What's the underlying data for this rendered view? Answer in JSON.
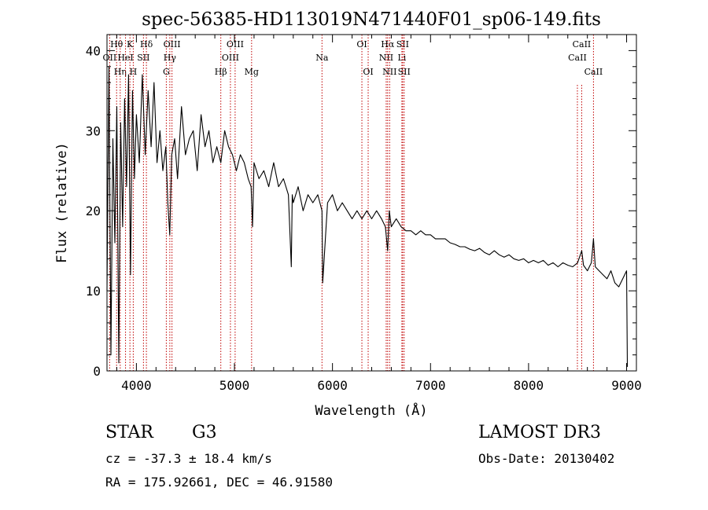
{
  "chart_data": {
    "type": "line",
    "title": "spec-56385-HD113019N471440F01_sp06-149.fits",
    "xlabel": "Wavelength (Å)",
    "ylabel": "Flux (relative)",
    "xlim": [
      3700,
      9100
    ],
    "ylim": [
      0,
      42
    ],
    "xticks": [
      4000,
      5000,
      6000,
      7000,
      8000,
      9000
    ],
    "yticks": [
      0,
      10,
      20,
      30,
      40
    ],
    "series": [
      {
        "name": "flux",
        "x": [
          3700,
          3720,
          3740,
          3760,
          3780,
          3800,
          3820,
          3840,
          3860,
          3880,
          3900,
          3920,
          3940,
          3960,
          3980,
          4000,
          4030,
          4060,
          4090,
          4120,
          4150,
          4180,
          4210,
          4240,
          4270,
          4300,
          4320,
          4340,
          4360,
          4390,
          4420,
          4460,
          4500,
          4540,
          4580,
          4620,
          4660,
          4700,
          4740,
          4780,
          4820,
          4861,
          4900,
          4940,
          4980,
          5020,
          5060,
          5100,
          5140,
          5170,
          5184,
          5200,
          5250,
          5300,
          5350,
          5400,
          5450,
          5500,
          5550,
          5580,
          5590,
          5600,
          5650,
          5700,
          5750,
          5800,
          5850,
          5893,
          5900,
          5950,
          6000,
          6050,
          6100,
          6150,
          6200,
          6250,
          6300,
          6350,
          6400,
          6450,
          6500,
          6540,
          6563,
          6580,
          6600,
          6650,
          6700,
          6750,
          6800,
          6850,
          6900,
          6950,
          7000,
          7050,
          7100,
          7150,
          7200,
          7250,
          7300,
          7350,
          7400,
          7450,
          7500,
          7550,
          7600,
          7650,
          7700,
          7750,
          7800,
          7850,
          7900,
          7950,
          8000,
          8050,
          8100,
          8150,
          8200,
          8250,
          8300,
          8350,
          8400,
          8450,
          8500,
          8542,
          8560,
          8600,
          8640,
          8662,
          8680,
          8720,
          8760,
          8800,
          8840,
          8880,
          8920,
          8960,
          9000,
          9008
        ],
        "values": [
          10,
          38,
          2,
          29,
          16,
          33,
          1,
          31,
          18,
          34,
          23,
          37,
          12,
          35,
          24,
          32,
          26,
          37,
          27,
          35,
          28,
          36,
          26,
          30,
          25,
          28,
          21,
          17,
          27,
          29,
          24,
          33,
          27,
          29,
          30,
          25,
          32,
          28,
          30,
          26,
          28,
          26,
          30,
          28,
          27,
          25,
          27,
          26,
          24,
          23,
          18,
          26,
          24,
          25,
          23,
          26,
          23,
          24,
          22,
          13,
          22,
          21,
          23,
          20,
          22,
          21,
          22,
          20,
          11,
          21,
          22,
          20,
          21,
          20,
          19,
          20,
          19,
          20,
          19,
          20,
          19,
          18,
          15,
          20,
          18,
          19,
          18,
          17.5,
          17.5,
          17,
          17.5,
          17,
          17,
          16.5,
          16.5,
          16.5,
          16,
          15.8,
          15.5,
          15.5,
          15.2,
          15,
          15.3,
          14.8,
          14.5,
          15,
          14.5,
          14.2,
          14.5,
          14,
          13.8,
          14,
          13.5,
          13.8,
          13.5,
          13.8,
          13.2,
          13.5,
          13,
          13.5,
          13.2,
          13,
          13.5,
          15,
          13.2,
          12.5,
          13.5,
          16.5,
          13,
          12.5,
          12,
          11.5,
          12.5,
          11,
          10.5,
          11.5,
          12.5,
          0.5
        ]
      }
    ],
    "lines": [
      {
        "name": "OII",
        "x": 3727,
        "row": 1,
        "short": false
      },
      {
        "name": "Hθ",
        "x": 3798,
        "row": 0,
        "short": false
      },
      {
        "name": "Hη",
        "x": 3835,
        "row": 2,
        "short": false
      },
      {
        "name": "HeI",
        "x": 3889,
        "row": 1,
        "short": false
      },
      {
        "name": "K",
        "x": 3934,
        "row": 0,
        "short": false
      },
      {
        "name": "H",
        "x": 3968,
        "row": 2,
        "short": false
      },
      {
        "name": "SII",
        "x": 4072,
        "row": 1,
        "short": false
      },
      {
        "name": "Hδ",
        "x": 4102,
        "row": 0,
        "short": false
      },
      {
        "name": "G",
        "x": 4305,
        "row": 2,
        "short": false
      },
      {
        "name": "Hγ",
        "x": 4341,
        "row": 1,
        "short": false
      },
      {
        "name": "OIII",
        "x": 4363,
        "row": 0,
        "short": false
      },
      {
        "name": "Hβ",
        "x": 4861,
        "row": 2,
        "short": false
      },
      {
        "name": "OIII",
        "x": 4959,
        "row": 1,
        "short": false
      },
      {
        "name": "OIII",
        "x": 5007,
        "row": 0,
        "short": false
      },
      {
        "name": "Mg",
        "x": 5175,
        "row": 2,
        "short": false
      },
      {
        "name": "Na",
        "x": 5893,
        "row": 1,
        "short": false
      },
      {
        "name": "OI",
        "x": 6300,
        "row": 0,
        "short": false
      },
      {
        "name": "OI",
        "x": 6364,
        "row": 2,
        "short": false
      },
      {
        "name": "NII",
        "x": 6548,
        "row": 1,
        "short": false
      },
      {
        "name": "Hα",
        "x": 6563,
        "row": 0,
        "short": false
      },
      {
        "name": "NII",
        "x": 6583,
        "row": 2,
        "short": false
      },
      {
        "name": "Li",
        "x": 6708,
        "row": 1,
        "short": false
      },
      {
        "name": "SII",
        "x": 6716,
        "row": 0,
        "short": false
      },
      {
        "name": "SII",
        "x": 6731,
        "row": 2,
        "short": false
      },
      {
        "name": "CaII",
        "x": 8498,
        "row": 1,
        "short": true
      },
      {
        "name": "CaII",
        "x": 8542,
        "row": 0,
        "short": true
      },
      {
        "name": "CaII",
        "x": 8662,
        "row": 2,
        "short": false
      }
    ],
    "line_color": "#c00000",
    "grid": false,
    "legend": "none"
  },
  "info": {
    "object_class": "STAR",
    "subclass": "G3",
    "survey": "LAMOST DR3",
    "redshift": "cz = -37.3 ± 18.4 km/s",
    "obs_date": "Obs-Date: 20130402",
    "coords": "RA = 175.92661, DEC =  46.91580"
  }
}
